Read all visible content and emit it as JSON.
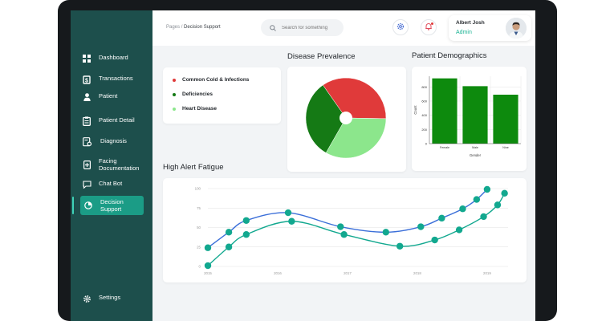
{
  "nav": [
    {
      "label": "Dashboard",
      "icon": "grid-icon"
    },
    {
      "label": "Transactions",
      "icon": "dollar-icon"
    },
    {
      "label": "Patient",
      "icon": "person-icon"
    },
    {
      "label": "Patient Detail",
      "icon": "clipboard-icon"
    },
    {
      "label": "Diagnosis",
      "icon": "stethoscope-icon"
    },
    {
      "label": "Facing Documentation",
      "icon": "document-plus-icon"
    },
    {
      "label": "Chat Bot",
      "icon": "chat-icon"
    },
    {
      "label": "Decision Support",
      "icon": "pie-chart-icon",
      "active": true
    }
  ],
  "settings_label": "Settings",
  "breadcrumb": {
    "parent": "Pages",
    "separator": "/",
    "current": "Decision Support"
  },
  "search": {
    "placeholder": "Search for something"
  },
  "user": {
    "name": "Albert Josh",
    "role": "Admin"
  },
  "sections": {
    "prevalence_title": "Disease Prevalence",
    "demographics_title": "Patient Demographics",
    "fatigue_title": "High Alert Fatigue"
  },
  "legend": [
    {
      "label": "Common Cold & Infections",
      "color": "#e03a3a"
    },
    {
      "label": "Deficiencies",
      "color": "#157a15"
    },
    {
      "label": "Heart Disease",
      "color": "#8ce68c"
    }
  ],
  "colors": {
    "sidebar": "#1d4f4c",
    "accent": "#1b9c86",
    "line_blue": "#3b6fd9",
    "line_teal": "#12a88f"
  },
  "chart_data": [
    {
      "type": "pie",
      "title": "Disease Prevalence",
      "labels": [
        "Common Cold & Infections",
        "Heart Disease",
        "Deficiencies"
      ],
      "values": [
        35,
        33,
        32
      ],
      "colors": [
        "#e03a3a",
        "#8ce68c",
        "#157a15"
      ],
      "donut_hole": true
    },
    {
      "type": "bar",
      "title": "Patient Demographics",
      "categories": [
        "Female",
        "Male",
        "Nine"
      ],
      "values": [
        920,
        810,
        690
      ],
      "xlabel": "Gender",
      "ylabel": "Count",
      "ylim": [
        0,
        950
      ],
      "yticks": [
        0,
        200,
        400,
        600,
        800
      ],
      "bar_color": "#0d8a0d",
      "grid": true
    },
    {
      "type": "line",
      "title": "High Alert Fatigue",
      "xlim": [
        2015,
        2019.3
      ],
      "xticks": [
        2015,
        2016,
        2017,
        2018,
        2019
      ],
      "ylim": [
        0,
        100
      ],
      "yticks": [
        0,
        25,
        50,
        75,
        100
      ],
      "grid": true,
      "series": [
        {
          "color": "#3b6fd9",
          "x": [
            2015.0,
            2015.3,
            2015.55,
            2016.15,
            2016.9,
            2017.55,
            2018.05,
            2018.35,
            2018.65,
            2018.85,
            2019.0
          ],
          "y": [
            24,
            44,
            59,
            69,
            51,
            44,
            51,
            62,
            74,
            86,
            99
          ]
        },
        {
          "color": "#12a88f",
          "x": [
            2015.0,
            2015.3,
            2015.55,
            2016.2,
            2016.95,
            2017.75,
            2018.25,
            2018.6,
            2018.95,
            2019.15,
            2019.25
          ],
          "y": [
            1,
            25,
            41,
            58,
            41,
            26,
            34,
            47,
            64,
            79,
            94
          ]
        }
      ]
    }
  ]
}
